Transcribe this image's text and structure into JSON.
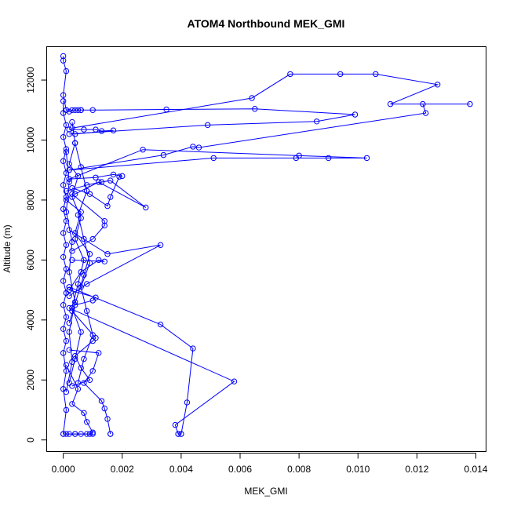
{
  "chart_data": {
    "type": "line",
    "title": "ATOM4 Northbound MEK_GMI",
    "xlabel": "MEK_GMI",
    "ylabel": "Altitude (m)",
    "xlim": [
      -0.00055,
      0.01436
    ],
    "ylim": [
      -400,
      13100
    ],
    "x_ticks": [
      0,
      0.002,
      0.004,
      0.006,
      0.008,
      0.01,
      0.012,
      0.014
    ],
    "x_tick_labels": [
      "0.000",
      "0.002",
      "0.004",
      "0.006",
      "0.008",
      "0.010",
      "0.012",
      "0.014"
    ],
    "y_ticks": [
      0,
      2000,
      4000,
      6000,
      8000,
      10000,
      12000
    ],
    "y_tick_labels": [
      "0",
      "2000",
      "4000",
      "6000",
      "8000",
      "10000",
      "12000"
    ],
    "grid": false,
    "legend": "none",
    "marker": "open-circle",
    "colors": {
      "series": "#0000ff",
      "axes": "#000000",
      "background": "#ffffff"
    },
    "series": [
      {
        "x": [
          0.0,
          0.0,
          0.0001,
          0.0,
          0.0001
        ],
        "y": [
          12800,
          12650,
          12300,
          11500,
          11000
        ]
      },
      {
        "x": [
          0.0001,
          0.0002,
          0.0003,
          0.0004,
          0.0005,
          0.0006
        ],
        "y": [
          11000,
          10950,
          11000,
          11000,
          11000,
          11000
        ]
      },
      {
        "x": [
          0.0006,
          0.001,
          0.0035,
          0.0065,
          0.0099,
          0.0086,
          0.0049,
          0.0002
        ],
        "y": [
          11000,
          11000,
          11020,
          11040,
          10850,
          10620,
          10500,
          10200
        ]
      },
      {
        "x": [
          0.0002,
          0.0007,
          0.0011,
          0.0013,
          0.0017,
          0.0004
        ],
        "y": [
          10350,
          10350,
          10350,
          10300,
          10320,
          10200
        ]
      },
      {
        "x": [
          0.0003,
          0.0064,
          0.0077,
          0.0094,
          0.0106,
          0.0127,
          0.0111,
          0.0138,
          0.0122,
          0.0123,
          0.0046,
          0.0044,
          0.0034,
          0.0002
        ],
        "y": [
          10400,
          11400,
          12200,
          12200,
          12200,
          11850,
          11200,
          11200,
          11200,
          10900,
          9750,
          9780,
          9500,
          9000
        ]
      },
      {
        "x": [
          0.0002,
          0.0051,
          0.0079,
          0.009,
          0.0103,
          0.008,
          0.0027,
          0.0002
        ],
        "y": [
          9000,
          9400,
          9400,
          9400,
          9400,
          9480,
          9680,
          8700
        ]
      },
      {
        "x": [
          0.0002,
          0.0011,
          0.0017,
          0.002,
          0.0019,
          0.0016,
          0.0015,
          0.0009,
          0.0003
        ],
        "y": [
          8700,
          8750,
          8850,
          8800,
          8780,
          8100,
          7800,
          8200,
          8400
        ]
      },
      {
        "x": [
          0.0001,
          0.0008,
          0.0013,
          0.0016,
          0.0028,
          0.0012,
          0.0004
        ],
        "y": [
          8300,
          8500,
          8600,
          8650,
          7750,
          8600,
          8200
        ]
      },
      {
        "x": [
          0.0003,
          0.0014,
          0.0014,
          0.001,
          0.0003
        ],
        "y": [
          8200,
          7300,
          7150,
          6700,
          6300
        ]
      },
      {
        "x": [
          0.0002,
          0.0015,
          0.0033,
          0.0008,
          0.0002
        ],
        "y": [
          7000,
          6200,
          6500,
          5200,
          4800
        ]
      },
      {
        "x": [
          0.0003,
          0.0014,
          0.0012,
          0.0006,
          0.0002
        ],
        "y": [
          6000,
          5950,
          6000,
          5600,
          5000
        ]
      },
      {
        "x": [
          0.0002,
          0.0011,
          0.001,
          0.0004
        ],
        "y": [
          5000,
          4750,
          4650,
          4500
        ]
      },
      {
        "x": [
          0.0002,
          0.0033,
          0.0044,
          0.0042,
          0.004,
          0.0039
        ],
        "y": [
          5100,
          3850,
          3050,
          1250,
          200,
          200
        ]
      },
      {
        "x": [
          0.0002,
          0.0058,
          0.0038,
          0.0039,
          0.004
        ],
        "y": [
          4400,
          1950,
          500,
          200,
          200
        ]
      },
      {
        "x": [
          0.0003,
          0.0011,
          0.001,
          0.0004,
          0.0006,
          0.0009,
          0.0003
        ],
        "y": [
          4300,
          3400,
          3300,
          2800,
          2400,
          2000,
          1800
        ]
      },
      {
        "x": [
          0.0002,
          0.0012,
          0.001,
          0.0007,
          0.0013,
          0.0014,
          0.0015,
          0.0016,
          0.0016
        ],
        "y": [
          3000,
          2900,
          2300,
          1900,
          1300,
          1050,
          700,
          200,
          200
        ]
      },
      {
        "x": [
          0.0001,
          0.0005,
          0.0003,
          0.0007,
          0.0008,
          0.001,
          0.0009,
          0.0004,
          0.0001
        ],
        "y": [
          2500,
          1700,
          1200,
          900,
          600,
          250,
          200,
          200,
          200
        ]
      },
      {
        "x": [
          0.0,
          0.0002,
          0.0004,
          0.0006,
          0.0008,
          0.001
        ],
        "y": [
          200,
          200,
          200,
          200,
          200,
          200
        ]
      },
      {
        "x": [
          0.0001,
          0.0006,
          0.0004,
          0.0009,
          0.0007,
          0.0002
        ],
        "y": [
          8000,
          7600,
          6900,
          6200,
          5500,
          3900
        ]
      },
      {
        "x": [
          0.0,
          0.0,
          0.0001,
          0.0,
          0.0001,
          0.0,
          0.0001,
          0.0,
          0.0001,
          0.0,
          0.0001,
          0.0,
          0.0001,
          0.0,
          0.0001,
          0.0,
          0.0001,
          0.0,
          0.0001,
          0.0,
          0.0001,
          0.0,
          0.0001,
          0.0,
          0.0001,
          0.0
        ],
        "y": [
          11300,
          10900,
          10500,
          10100,
          9700,
          9300,
          8900,
          8500,
          8100,
          7700,
          7300,
          6900,
          6500,
          6100,
          5700,
          5300,
          4900,
          4500,
          4100,
          3700,
          3300,
          2900,
          2300,
          1700,
          1000,
          200
        ]
      },
      {
        "x": [
          0.0003,
          0.0004,
          0.0002,
          0.0005,
          0.0003,
          0.0006,
          0.0004,
          0.0007,
          0.0005,
          0.0003,
          0.0006,
          0.0004,
          0.0002
        ],
        "y": [
          10600,
          9900,
          9200,
          8800,
          8100,
          7400,
          6700,
          6000,
          5200,
          4400,
          3600,
          2700,
          1900
        ]
      },
      {
        "x": [
          0.0004,
          0.0006,
          0.0008,
          0.0005,
          0.0007,
          0.0009,
          0.0006,
          0.0008,
          0.001,
          0.0007,
          0.0005
        ],
        "y": [
          9900,
          9100,
          8300,
          7500,
          6700,
          5900,
          5100,
          4300,
          3500,
          2700,
          1900
        ]
      },
      {
        "x": [
          0.0001,
          0.0002,
          0.0001,
          0.0003,
          0.0002,
          0.0004,
          0.0002,
          0.0003,
          0.0001
        ],
        "y": [
          9600,
          8600,
          7600,
          6600,
          5600,
          4600,
          3600,
          2600,
          1600
        ]
      }
    ]
  }
}
